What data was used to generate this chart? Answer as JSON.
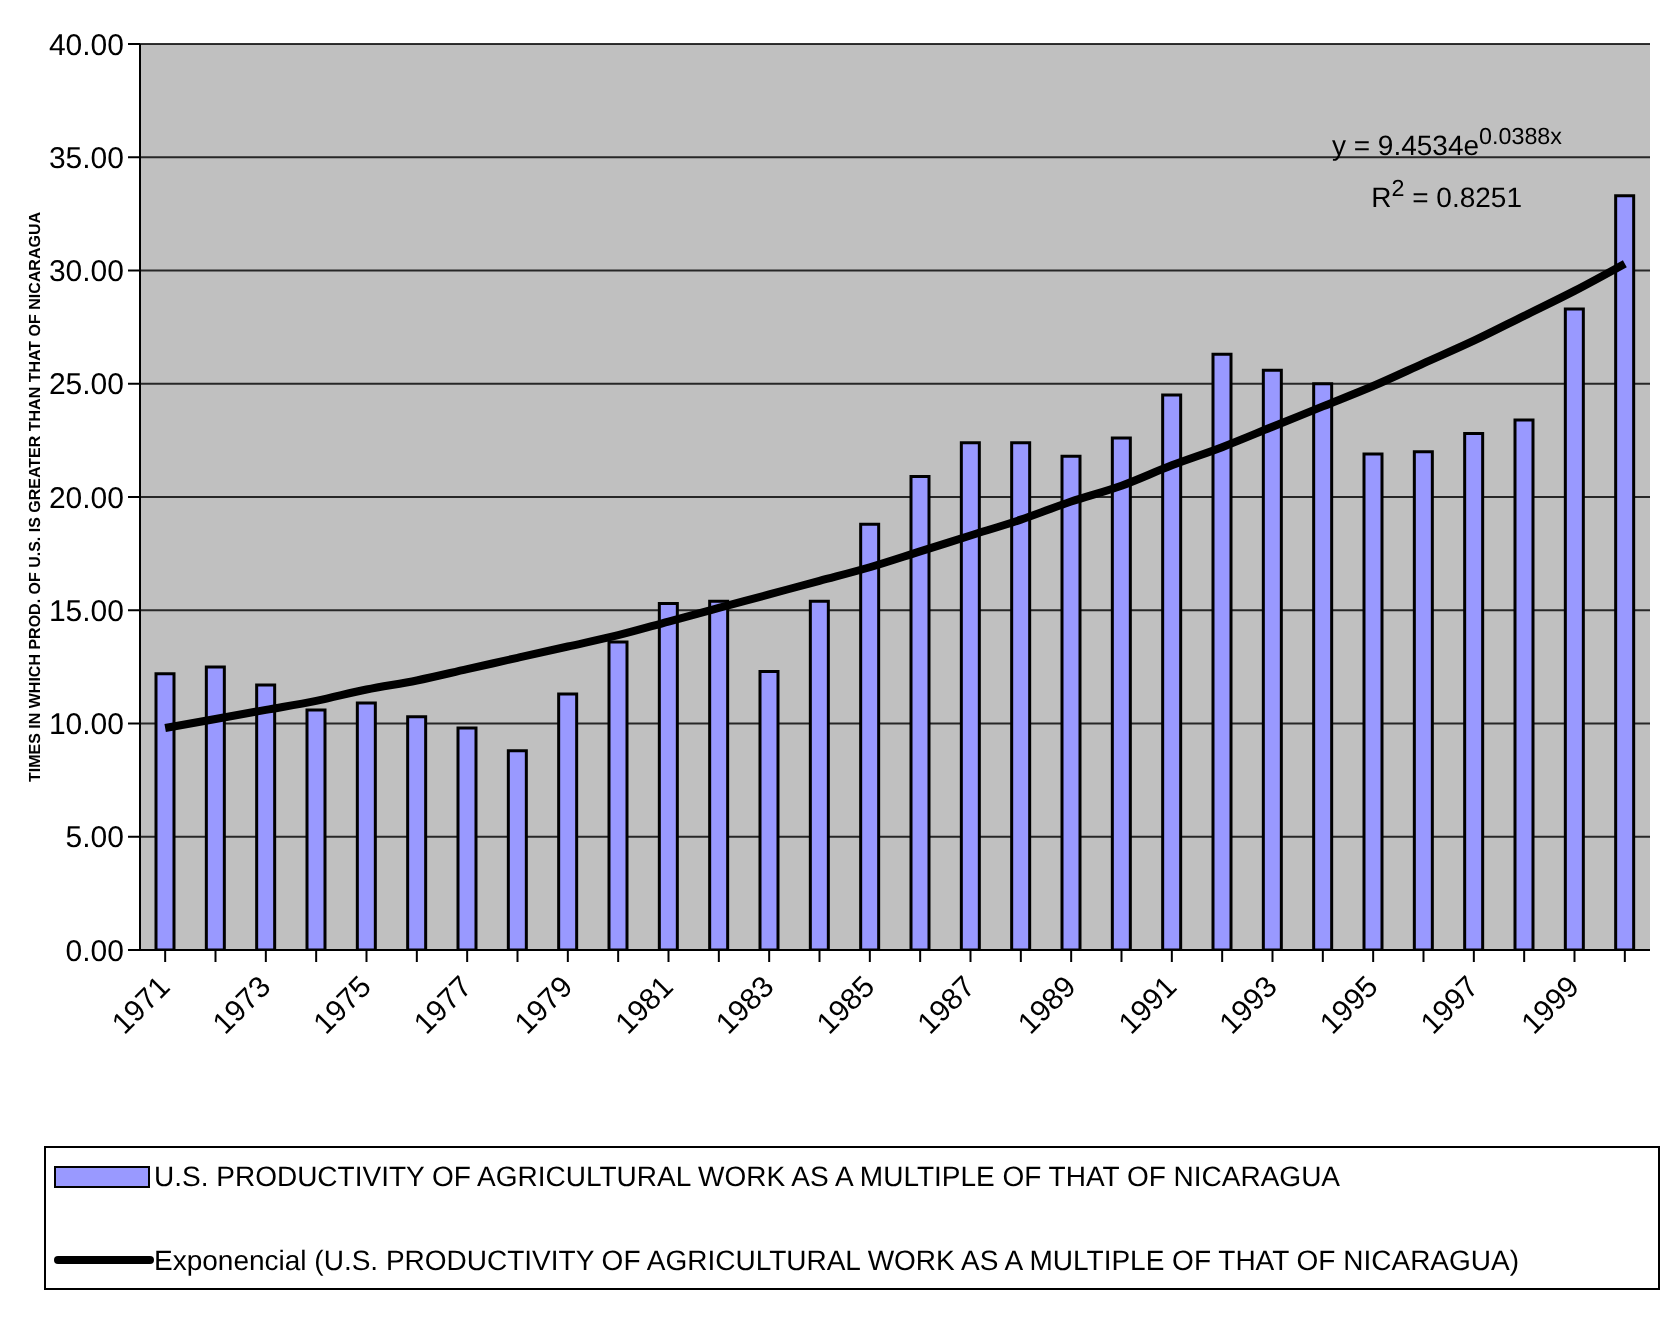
{
  "chart_data": {
    "type": "bar",
    "ylabel": "TIMES IN WHICH PROD. OF U.S. IS GREATER THAN THAT OF NICARAGUA",
    "categories": [
      "1971",
      null,
      "1973",
      null,
      "1975",
      null,
      "1977",
      null,
      "1979",
      null,
      "1981",
      null,
      "1983",
      null,
      "1985",
      null,
      "1987",
      null,
      "1989",
      null,
      "1991",
      null,
      "1993",
      null,
      "1995",
      null,
      "1997",
      null,
      "1999",
      null
    ],
    "series": [
      {
        "name": "U.S. PRODUCTIVITY OF AGRICULTURAL WORK  AS A MULTIPLE OF THAT OF NICARAGUA",
        "color": "#9999ff",
        "values": [
          12.2,
          12.5,
          11.7,
          10.6,
          10.9,
          10.3,
          9.8,
          8.8,
          11.3,
          13.6,
          15.3,
          15.4,
          12.3,
          15.4,
          18.8,
          20.9,
          22.4,
          22.4,
          21.8,
          22.6,
          24.5,
          26.3,
          25.6,
          25.0,
          21.9,
          22.0,
          22.8,
          23.4,
          28.3,
          33.3
        ]
      },
      {
        "type": "line",
        "name": "Exponencial (U.S. PRODUCTIVITY OF AGRICULTURAL WORK  AS A MULTIPLE OF THAT OF NICARAGUA)",
        "color": "#000000",
        "values": [
          9.8,
          10.2,
          10.6,
          11.0,
          11.5,
          11.9,
          12.4,
          12.9,
          13.4,
          13.9,
          14.5,
          15.1,
          15.7,
          16.3,
          16.9,
          17.6,
          18.3,
          19.0,
          19.8,
          20.5,
          21.4,
          22.2,
          23.1,
          24.0,
          24.9,
          25.9,
          26.9,
          28.0,
          29.1,
          30.3
        ]
      }
    ],
    "ylim": [
      0,
      40
    ],
    "yticks": [
      {
        "value": 0,
        "label": "0.00"
      },
      {
        "value": 5,
        "label": "5.00"
      },
      {
        "value": 10,
        "label": "10.00"
      },
      {
        "value": 15,
        "label": "15.00"
      },
      {
        "value": 20,
        "label": "20.00"
      },
      {
        "value": 25,
        "label": "25.00"
      },
      {
        "value": 30,
        "label": "30.00"
      },
      {
        "value": 35,
        "label": "35.00"
      },
      {
        "value": 40,
        "label": "40.00"
      }
    ],
    "grid": "y",
    "legend": "bottom",
    "marker": "none",
    "line_style": "solid",
    "annotations": [
      "y = 9.4534e$^{0.0388x}$",
      "R$^{2}$ = 0.8251"
    ]
  }
}
